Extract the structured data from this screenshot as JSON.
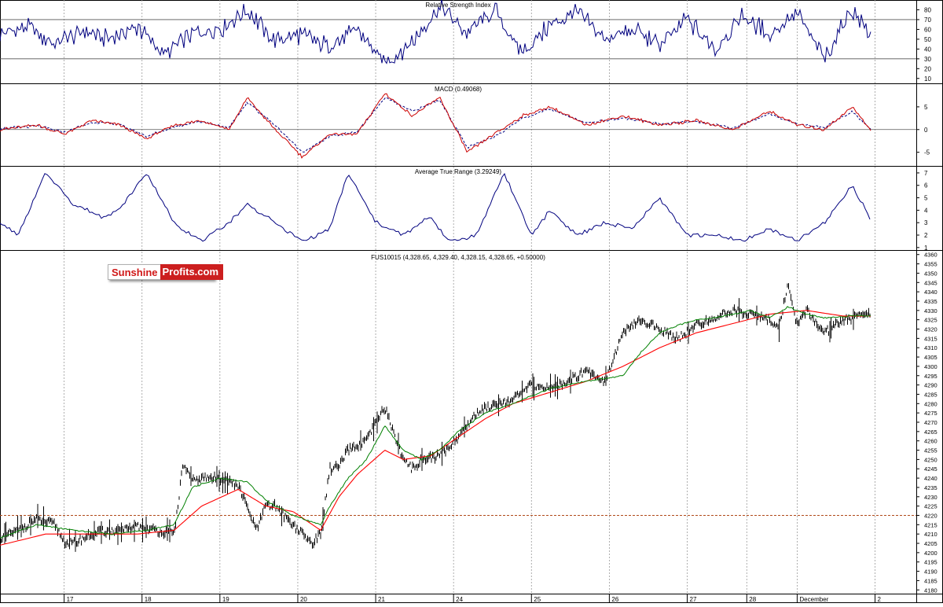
{
  "colors": {
    "price": "#000000",
    "ma_short": "#008000",
    "ma_long": "#ff0000",
    "rsi": "#00007f",
    "macd": "#cc0000",
    "signal": "#000080",
    "atr": "#00007f",
    "support": "#b04a1a",
    "grid": "#9a9a9a"
  },
  "logo": {
    "part1": "Sunshine",
    "part2": "Profits.com"
  },
  "chart_data": [
    {
      "type": "line",
      "title": "Relative Strength Index",
      "yticks": [
        80,
        70,
        60,
        50,
        40,
        30,
        20,
        10
      ],
      "ylim": [
        5,
        90
      ],
      "reference_lines": [
        70,
        30
      ],
      "x": [
        0,
        0.03,
        0.06,
        0.09,
        0.12,
        0.15,
        0.18,
        0.21,
        0.24,
        0.27,
        0.3,
        0.33,
        0.36,
        0.39,
        0.42,
        0.45,
        0.48,
        0.51,
        0.54,
        0.57,
        0.6,
        0.63,
        0.66,
        0.69,
        0.72,
        0.75,
        0.78,
        0.81,
        0.84,
        0.87,
        0.9,
        0.93,
        0.95
      ],
      "values": [
        55,
        62,
        45,
        58,
        50,
        63,
        35,
        55,
        60,
        80,
        48,
        55,
        42,
        60,
        25,
        48,
        82,
        55,
        80,
        35,
        65,
        78,
        50,
        60,
        45,
        70,
        40,
        75,
        55,
        78,
        30,
        82,
        52
      ]
    },
    {
      "type": "line",
      "title": "MACD (0.49068)",
      "yticks": [
        5,
        0,
        -5
      ],
      "ylim": [
        -8,
        10
      ],
      "reference_lines": [
        0
      ],
      "series": [
        {
          "name": "",
          "x": [
            0,
            0.04,
            0.07,
            0.1,
            0.13,
            0.16,
            0.19,
            0.22,
            0.25,
            0.27,
            0.3,
            0.33,
            0.36,
            0.39,
            0.42,
            0.45,
            0.48,
            0.51,
            0.54,
            0.57,
            0.6,
            0.64,
            0.68,
            0.72,
            0.76,
            0.8,
            0.84,
            0.87,
            0.9,
            0.93,
            0.95
          ],
          "values": [
            0,
            1,
            -1,
            2,
            1,
            -2,
            1,
            2,
            0,
            7,
            0,
            -6,
            -1,
            -1,
            8,
            3,
            7,
            -5,
            -1,
            3,
            5,
            1,
            3,
            1,
            2,
            0,
            4,
            1,
            0,
            5,
            0
          ]
        },
        {
          "name": "",
          "x": [
            0,
            0.04,
            0.07,
            0.1,
            0.13,
            0.16,
            0.19,
            0.22,
            0.25,
            0.27,
            0.3,
            0.33,
            0.36,
            0.39,
            0.42,
            0.45,
            0.48,
            0.51,
            0.54,
            0.57,
            0.6,
            0.64,
            0.68,
            0.72,
            0.76,
            0.8,
            0.84,
            0.87,
            0.9,
            0.93,
            0.95
          ],
          "values": [
            0.2,
            0.8,
            -0.6,
            1.6,
            1.2,
            -1.5,
            0.6,
            1.8,
            0.4,
            6,
            1,
            -5,
            -1.5,
            -0.5,
            7,
            4,
            6.5,
            -4,
            -1.5,
            2.5,
            4.5,
            1.5,
            2.5,
            1.2,
            1.8,
            0.3,
            3.5,
            1.2,
            0.5,
            4,
            0.2
          ]
        }
      ]
    },
    {
      "type": "line",
      "title": "Average True Range (3.29249)",
      "yticks": [
        7,
        6,
        5,
        4,
        3,
        2,
        1
      ],
      "ylim": [
        0.8,
        7.5
      ],
      "x": [
        0,
        0.02,
        0.05,
        0.08,
        0.11,
        0.13,
        0.16,
        0.19,
        0.22,
        0.25,
        0.27,
        0.3,
        0.33,
        0.36,
        0.38,
        0.41,
        0.44,
        0.47,
        0.49,
        0.52,
        0.55,
        0.58,
        0.6,
        0.63,
        0.66,
        0.69,
        0.72,
        0.75,
        0.78,
        0.81,
        0.84,
        0.87,
        0.9,
        0.93,
        0.95
      ],
      "values": [
        3,
        2,
        7,
        4.5,
        3.5,
        4,
        7,
        3,
        1.5,
        3,
        4.5,
        3,
        1.5,
        2.5,
        7,
        3,
        2,
        3.5,
        1.5,
        2,
        7,
        2,
        4,
        2,
        3,
        2.5,
        5,
        2,
        2,
        1.5,
        2.5,
        1.5,
        3,
        6,
        3.3
      ]
    },
    {
      "type": "line",
      "title": "FUS10015 (4,328.65, 4,329.40, 4,328.15, 4,328.65, +0.50000)",
      "ylabel": "",
      "yticks": [
        4360,
        4355,
        4350,
        4345,
        4340,
        4335,
        4330,
        4325,
        4320,
        4315,
        4310,
        4305,
        4300,
        4295,
        4290,
        4285,
        4280,
        4275,
        4270,
        4265,
        4260,
        4255,
        4250,
        4245,
        4240,
        4235,
        4230,
        4225,
        4220,
        4215,
        4210,
        4205,
        4200,
        4195,
        4190,
        4185,
        4180
      ],
      "ylim": [
        4178,
        4362
      ],
      "xticks": [
        "17",
        "18",
        "19",
        "20",
        "21",
        "24",
        "25",
        "26",
        "27",
        "28",
        "December",
        "2"
      ],
      "xtick_pos": [
        0.07,
        0.155,
        0.24,
        0.325,
        0.41,
        0.495,
        0.58,
        0.665,
        0.75,
        0.815,
        0.87,
        0.955
      ],
      "horizontal_line": 4220,
      "series": [
        {
          "name": "",
          "x": [
            0,
            0.02,
            0.04,
            0.06,
            0.07,
            0.08,
            0.1,
            0.12,
            0.13,
            0.15,
            0.17,
            0.19,
            0.2,
            0.21,
            0.22,
            0.24,
            0.26,
            0.28,
            0.29,
            0.3,
            0.31,
            0.32,
            0.34,
            0.35,
            0.36,
            0.37,
            0.38,
            0.4,
            0.42,
            0.44,
            0.45,
            0.46,
            0.48,
            0.5,
            0.52,
            0.54,
            0.56,
            0.58,
            0.6,
            0.62,
            0.64,
            0.66,
            0.68,
            0.7,
            0.72,
            0.74,
            0.76,
            0.78,
            0.8,
            0.82,
            0.84,
            0.85,
            0.86,
            0.87,
            0.88,
            0.9,
            0.92,
            0.95
          ],
          "values": [
            4208,
            4212,
            4218,
            4215,
            4206,
            4205,
            4210,
            4212,
            4211,
            4214,
            4212,
            4210,
            4248,
            4238,
            4240,
            4240,
            4236,
            4212,
            4225,
            4225,
            4220,
            4215,
            4205,
            4210,
            4245,
            4246,
            4255,
            4260,
            4278,
            4250,
            4245,
            4250,
            4252,
            4262,
            4275,
            4280,
            4282,
            4290,
            4288,
            4292,
            4298,
            4292,
            4318,
            4325,
            4320,
            4315,
            4322,
            4326,
            4330,
            4328,
            4325,
            4320,
            4345,
            4322,
            4330,
            4318,
            4325,
            4328
          ]
        },
        {
          "name": "",
          "x": [
            0,
            0.04,
            0.08,
            0.12,
            0.16,
            0.19,
            0.21,
            0.24,
            0.27,
            0.29,
            0.32,
            0.35,
            0.36,
            0.38,
            0.4,
            0.42,
            0.44,
            0.46,
            0.48,
            0.5,
            0.53,
            0.56,
            0.6,
            0.64,
            0.68,
            0.7,
            0.72,
            0.74,
            0.76,
            0.78,
            0.8,
            0.82,
            0.84,
            0.86,
            0.88,
            0.9,
            0.93,
            0.95
          ],
          "values": [
            4208,
            4215,
            4212,
            4210,
            4212,
            4215,
            4235,
            4240,
            4238,
            4228,
            4220,
            4215,
            4225,
            4240,
            4250,
            4268,
            4255,
            4250,
            4255,
            4265,
            4275,
            4280,
            4288,
            4292,
            4295,
            4308,
            4318,
            4322,
            4325,
            4326,
            4328,
            4330,
            4326,
            4332,
            4328,
            4326,
            4327,
            4327
          ]
        },
        {
          "name": "",
          "x": [
            0,
            0.05,
            0.1,
            0.15,
            0.19,
            0.22,
            0.26,
            0.29,
            0.32,
            0.35,
            0.37,
            0.39,
            0.42,
            0.44,
            0.47,
            0.5,
            0.53,
            0.56,
            0.6,
            0.64,
            0.68,
            0.72,
            0.76,
            0.8,
            0.84,
            0.88,
            0.92,
            0.95
          ],
          "values": [
            4204,
            4210,
            4210,
            4210,
            4212,
            4225,
            4234,
            4225,
            4222,
            4212,
            4230,
            4242,
            4255,
            4250,
            4252,
            4262,
            4272,
            4280,
            4286,
            4292,
            4300,
            4310,
            4318,
            4323,
            4328,
            4330,
            4327,
            4327
          ]
        }
      ]
    }
  ]
}
